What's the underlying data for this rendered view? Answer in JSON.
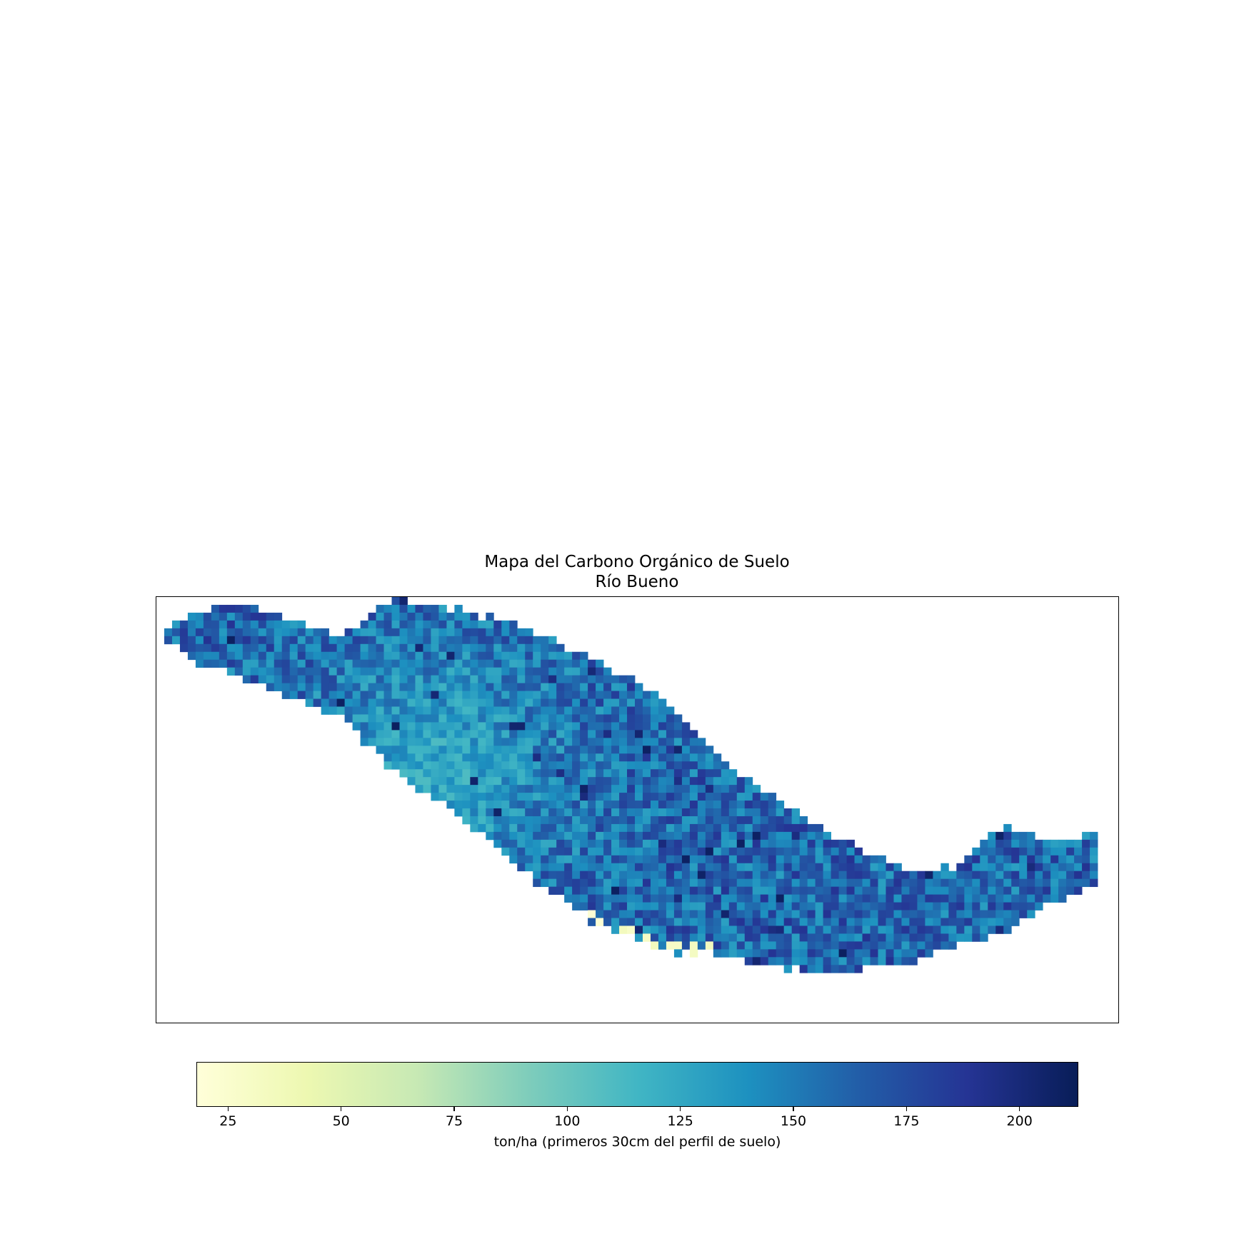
{
  "map": {
    "title_line1": "Mapa del Carbono Orgánico de Suelo",
    "title_line2": "Río Bueno",
    "variable": "Carbono Orgánico de Suelo",
    "region": "Río Bueno"
  },
  "colorbar": {
    "label": "ton/ha (primeros 30cm del perfil de suelo)",
    "min": 18,
    "max": 213,
    "ticks": [
      25,
      50,
      75,
      100,
      125,
      150,
      175,
      200
    ],
    "colormap": "YlGnBu",
    "stops": [
      "#ffffd9",
      "#edf8b1",
      "#c7e9b4",
      "#7fcdbb",
      "#41b6c4",
      "#1d91c0",
      "#225ea8",
      "#253494",
      "#081d58"
    ]
  },
  "chart_data": {
    "type": "heatmap",
    "title": "Mapa del Carbono Orgánico de Suelo\nRío Bueno",
    "colorbar_label": "ton/ha (primeros 30cm del perfil de suelo)",
    "value_range": [
      18,
      213
    ],
    "colormap": "YlGnBu",
    "grid": false,
    "legend": "colorbar-bottom",
    "regional_summary": {
      "typical_range": [
        130,
        190
      ],
      "lighter_cyan_zone_values": [
        105,
        135
      ],
      "darkest_values": [
        195,
        210
      ],
      "sparse_minimum_cells_near_southern_edge": [
        20,
        35
      ]
    }
  }
}
